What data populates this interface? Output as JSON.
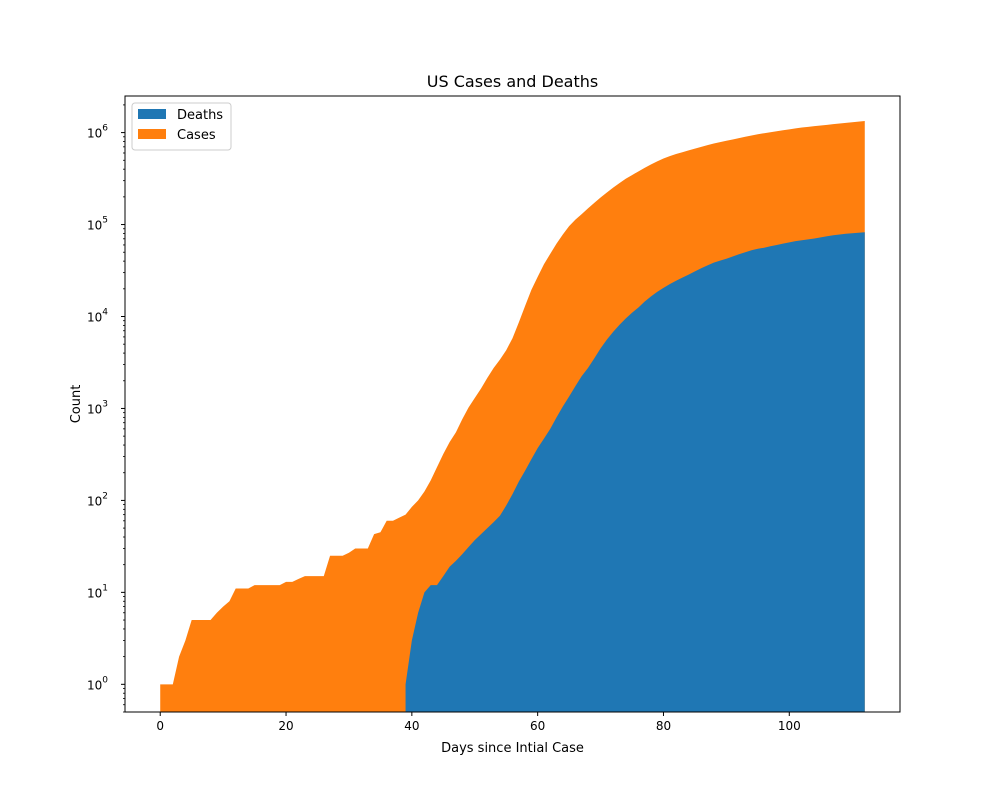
{
  "chart_data": {
    "type": "area",
    "stacked": true,
    "title": "US Cases and Deaths",
    "xlabel": "Days since Intial Case",
    "ylabel": "Count",
    "yscale": "log",
    "xlim": [
      -5.6,
      117.6
    ],
    "ylim": [
      0.5,
      2500000
    ],
    "xticks": [
      0,
      20,
      40,
      60,
      80,
      100
    ],
    "yticks": [
      {
        "value": 1,
        "base": "10",
        "exp": "0"
      },
      {
        "value": 10,
        "base": "10",
        "exp": "1"
      },
      {
        "value": 100,
        "base": "10",
        "exp": "2"
      },
      {
        "value": 1000,
        "base": "10",
        "exp": "3"
      },
      {
        "value": 10000,
        "base": "10",
        "exp": "4"
      },
      {
        "value": 100000,
        "base": "10",
        "exp": "5"
      },
      {
        "value": 1000000,
        "base": "10",
        "exp": "6"
      }
    ],
    "legend": {
      "location": "top-left"
    },
    "series": [
      {
        "name": "Deaths",
        "color": "#1f77b4",
        "points": [
          [
            39,
            1
          ],
          [
            40,
            3
          ],
          [
            41,
            6
          ],
          [
            42,
            10
          ],
          [
            43,
            12
          ],
          [
            44,
            12
          ],
          [
            45,
            15
          ],
          [
            46,
            19
          ],
          [
            47,
            22
          ],
          [
            48,
            26
          ],
          [
            49,
            31
          ],
          [
            50,
            37
          ],
          [
            51,
            43
          ],
          [
            52,
            50
          ],
          [
            53,
            58
          ],
          [
            54,
            68
          ],
          [
            55,
            88
          ],
          [
            56,
            117
          ],
          [
            57,
            160
          ],
          [
            58,
            210
          ],
          [
            59,
            280
          ],
          [
            60,
            370
          ],
          [
            61,
            470
          ],
          [
            62,
            600
          ],
          [
            63,
            800
          ],
          [
            64,
            1050
          ],
          [
            65,
            1350
          ],
          [
            66,
            1750
          ],
          [
            67,
            2250
          ],
          [
            68,
            2750
          ],
          [
            69,
            3500
          ],
          [
            70,
            4500
          ],
          [
            71,
            5600
          ],
          [
            72,
            6800
          ],
          [
            73,
            8100
          ],
          [
            74,
            9500
          ],
          [
            75,
            11000
          ],
          [
            76,
            12500
          ],
          [
            77,
            14500
          ],
          [
            78,
            16500
          ],
          [
            79,
            18500
          ],
          [
            80,
            20500
          ],
          [
            81,
            22500
          ],
          [
            82,
            24500
          ],
          [
            83,
            26500
          ],
          [
            84,
            28500
          ],
          [
            85,
            31000
          ],
          [
            86,
            33500
          ],
          [
            87,
            36000
          ],
          [
            88,
            38500
          ],
          [
            89,
            40500
          ],
          [
            90,
            42500
          ],
          [
            91,
            45000
          ],
          [
            92,
            47500
          ],
          [
            93,
            50000
          ],
          [
            94,
            52500
          ],
          [
            95,
            54500
          ],
          [
            96,
            56000
          ],
          [
            97,
            58000
          ],
          [
            98,
            60000
          ],
          [
            99,
            62000
          ],
          [
            100,
            64000
          ],
          [
            101,
            66000
          ],
          [
            102,
            67500
          ],
          [
            103,
            69000
          ],
          [
            104,
            70500
          ],
          [
            105,
            72500
          ],
          [
            106,
            74500
          ],
          [
            107,
            76500
          ],
          [
            108,
            78000
          ],
          [
            109,
            79500
          ],
          [
            110,
            80500
          ],
          [
            111,
            81500
          ],
          [
            112,
            82500
          ]
        ]
      },
      {
        "name": "Cases",
        "color": "#ff7f0e",
        "points": [
          [
            0,
            1
          ],
          [
            1,
            1
          ],
          [
            2,
            1
          ],
          [
            3,
            2
          ],
          [
            4,
            3
          ],
          [
            5,
            5
          ],
          [
            6,
            5
          ],
          [
            7,
            5
          ],
          [
            8,
            5
          ],
          [
            9,
            6
          ],
          [
            10,
            7
          ],
          [
            11,
            8
          ],
          [
            12,
            11
          ],
          [
            13,
            11
          ],
          [
            14,
            11
          ],
          [
            15,
            12
          ],
          [
            16,
            12
          ],
          [
            17,
            12
          ],
          [
            18,
            12
          ],
          [
            19,
            12
          ],
          [
            20,
            13
          ],
          [
            21,
            13
          ],
          [
            22,
            14
          ],
          [
            23,
            15
          ],
          [
            24,
            15
          ],
          [
            25,
            15
          ],
          [
            26,
            15
          ],
          [
            27,
            25
          ],
          [
            28,
            25
          ],
          [
            29,
            25
          ],
          [
            30,
            27
          ],
          [
            31,
            30
          ],
          [
            32,
            30
          ],
          [
            33,
            30
          ],
          [
            34,
            43
          ],
          [
            35,
            45
          ],
          [
            36,
            60
          ],
          [
            37,
            60
          ],
          [
            38,
            65
          ],
          [
            39,
            70
          ],
          [
            40,
            85
          ],
          [
            41,
            100
          ],
          [
            42,
            125
          ],
          [
            43,
            165
          ],
          [
            44,
            230
          ],
          [
            45,
            320
          ],
          [
            46,
            430
          ],
          [
            47,
            550
          ],
          [
            48,
            760
          ],
          [
            49,
            1020
          ],
          [
            50,
            1300
          ],
          [
            51,
            1650
          ],
          [
            52,
            2150
          ],
          [
            53,
            2750
          ],
          [
            54,
            3400
          ],
          [
            55,
            4300
          ],
          [
            56,
            5800
          ],
          [
            57,
            8600
          ],
          [
            58,
            13000
          ],
          [
            59,
            19500
          ],
          [
            60,
            27000
          ],
          [
            61,
            37000
          ],
          [
            62,
            48000
          ],
          [
            63,
            62000
          ],
          [
            64,
            78000
          ],
          [
            65,
            96000
          ],
          [
            66,
            113000
          ],
          [
            67,
            130000
          ],
          [
            68,
            150000
          ],
          [
            69,
            172000
          ],
          [
            70,
            197000
          ],
          [
            71,
            223000
          ],
          [
            72,
            252000
          ],
          [
            73,
            282000
          ],
          [
            74,
            315000
          ],
          [
            75,
            345000
          ],
          [
            76,
            378000
          ],
          [
            77,
            413000
          ],
          [
            78,
            450000
          ],
          [
            79,
            487000
          ],
          [
            80,
            522000
          ],
          [
            81,
            555000
          ],
          [
            82,
            585000
          ],
          [
            83,
            612000
          ],
          [
            84,
            640000
          ],
          [
            85,
            670000
          ],
          [
            86,
            700000
          ],
          [
            87,
            730000
          ],
          [
            88,
            760000
          ],
          [
            89,
            788000
          ],
          [
            90,
            815000
          ],
          [
            91,
            842000
          ],
          [
            92,
            870000
          ],
          [
            93,
            900000
          ],
          [
            94,
            930000
          ],
          [
            95,
            960000
          ],
          [
            96,
            985000
          ],
          [
            97,
            1010000
          ],
          [
            98,
            1035000
          ],
          [
            99,
            1060000
          ],
          [
            100,
            1085000
          ],
          [
            101,
            1110000
          ],
          [
            102,
            1135000
          ],
          [
            103,
            1155000
          ],
          [
            104,
            1175000
          ],
          [
            105,
            1195000
          ],
          [
            106,
            1215000
          ],
          [
            107,
            1235000
          ],
          [
            108,
            1255000
          ],
          [
            109,
            1275000
          ],
          [
            110,
            1295000
          ],
          [
            111,
            1315000
          ],
          [
            112,
            1335000
          ]
        ]
      }
    ]
  }
}
